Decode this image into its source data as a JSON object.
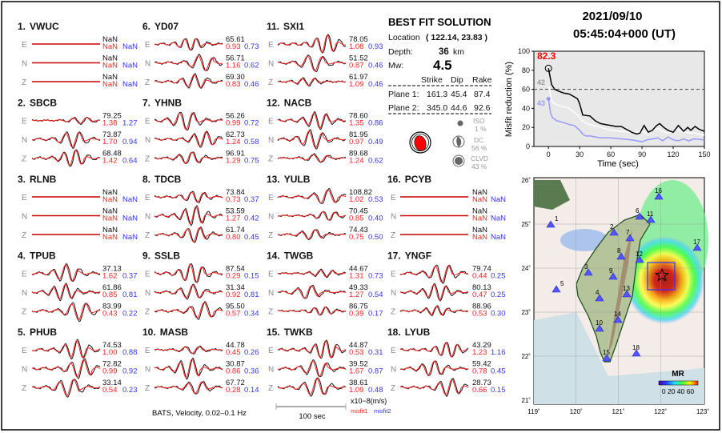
{
  "header": {
    "date": "2021/09/10",
    "time": "05:45:04+000  (UT)"
  },
  "solution": {
    "title": "BEST FIT SOLUTION",
    "location_label": "Location",
    "location_value": "( 122.14,  23.83 )",
    "depth_label": "Depth:",
    "depth_value": "36",
    "depth_unit": "km",
    "mw_label": "Mw:",
    "mw_value": "4.5",
    "columns": [
      "Strike",
      "Dip",
      "Rake"
    ],
    "planes": [
      {
        "label": "Plane 1:",
        "strike": "161.3",
        "dip": "45.4",
        "rake": "87.4"
      },
      {
        "label": "Plane 2:",
        "strike": "345.0",
        "dip": "44.6",
        "rake": "92.6"
      }
    ],
    "components": [
      {
        "label": "ISO",
        "value": "1  %"
      },
      {
        "label": "DC",
        "value": "56 %"
      },
      {
        "label": "CLVD",
        "value": "43 %"
      }
    ],
    "colors": {
      "beachball": "#ff0000",
      "observed": "#000000",
      "synthetic": "#ff0000"
    }
  },
  "stations": [
    {
      "num": "1.",
      "name": "VWUC",
      "comps": [
        {
          "c": "E",
          "vr": "NaN",
          "m1": "NaN",
          "m2": "NaN"
        },
        {
          "c": "N",
          "vr": "NaN",
          "m1": "NaN",
          "m2": "NaN"
        },
        {
          "c": "Z",
          "vr": "NaN",
          "m1": "NaN",
          "m2": "NaN"
        }
      ]
    },
    {
      "num": "2.",
      "name": "SBCB",
      "comps": [
        {
          "c": "E",
          "vr": "79.25",
          "m1": "1.38",
          "m2": "1.27"
        },
        {
          "c": "N",
          "vr": "73.87",
          "m1": "1.70",
          "m2": "0.94"
        },
        {
          "c": "Z",
          "vr": "68.48",
          "m1": "1.42",
          "m2": "0.64"
        }
      ]
    },
    {
      "num": "3.",
      "name": "RLNB",
      "comps": [
        {
          "c": "E",
          "vr": "NaN",
          "m1": "NaN",
          "m2": "NaN"
        },
        {
          "c": "N",
          "vr": "NaN",
          "m1": "NaN",
          "m2": "NaN"
        },
        {
          "c": "Z",
          "vr": "NaN",
          "m1": "NaN",
          "m2": "NaN"
        }
      ]
    },
    {
      "num": "4.",
      "name": "TPUB",
      "comps": [
        {
          "c": "E",
          "vr": "37.13",
          "m1": "1.62",
          "m2": "0.37"
        },
        {
          "c": "N",
          "vr": "61.86",
          "m1": "0.85",
          "m2": "0.81"
        },
        {
          "c": "Z",
          "vr": "83.99",
          "m1": "0.43",
          "m2": "0.22"
        }
      ]
    },
    {
      "num": "5.",
      "name": "PHUB",
      "comps": [
        {
          "c": "E",
          "vr": "74.53",
          "m1": "1.00",
          "m2": "0.88"
        },
        {
          "c": "N",
          "vr": "72.82",
          "m1": "0.99",
          "m2": "0.92"
        },
        {
          "c": "Z",
          "vr": "33.14",
          "m1": "0.54",
          "m2": "0.23"
        }
      ]
    },
    {
      "num": "6.",
      "name": "YD07",
      "comps": [
        {
          "c": "E",
          "vr": "65.61",
          "m1": "0.93",
          "m2": "0.73"
        },
        {
          "c": "N",
          "vr": "56.71",
          "m1": "1.16",
          "m2": "0.62"
        },
        {
          "c": "Z",
          "vr": "69.30",
          "m1": "0.83",
          "m2": "0.46"
        }
      ]
    },
    {
      "num": "7.",
      "name": "YHNB",
      "comps": [
        {
          "c": "E",
          "vr": "56.26",
          "m1": "0.99",
          "m2": "0.72"
        },
        {
          "c": "N",
          "vr": "62.73",
          "m1": "1.24",
          "m2": "0.58"
        },
        {
          "c": "Z",
          "vr": "96.91",
          "m1": "1.29",
          "m2": "0.75"
        }
      ]
    },
    {
      "num": "8.",
      "name": "TDCB",
      "comps": [
        {
          "c": "E",
          "vr": "73.84",
          "m1": "0.73",
          "m2": "0.37"
        },
        {
          "c": "N",
          "vr": "53.59",
          "m1": "1.27",
          "m2": "0.42"
        },
        {
          "c": "Z",
          "vr": "61.74",
          "m1": "0.80",
          "m2": "0.45"
        }
      ]
    },
    {
      "num": "9.",
      "name": "SSLB",
      "comps": [
        {
          "c": "E",
          "vr": "87.54",
          "m1": "0.29",
          "m2": "0.15"
        },
        {
          "c": "N",
          "vr": "31.34",
          "m1": "0.92",
          "m2": "0.81"
        },
        {
          "c": "Z",
          "vr": "95.50",
          "m1": "0.57",
          "m2": "0.34"
        }
      ]
    },
    {
      "num": "10.",
      "name": "MASB",
      "comps": [
        {
          "c": "E",
          "vr": "44.78",
          "m1": "0.45",
          "m2": "0.26"
        },
        {
          "c": "N",
          "vr": "30.87",
          "m1": "0.86",
          "m2": "0.36"
        },
        {
          "c": "Z",
          "vr": "67.72",
          "m1": "0.28",
          "m2": "0.14"
        }
      ]
    },
    {
      "num": "11.",
      "name": "SXI1",
      "comps": [
        {
          "c": "E",
          "vr": "78.05",
          "m1": "1.08",
          "m2": "0.93"
        },
        {
          "c": "N",
          "vr": "51.52",
          "m1": "0.87",
          "m2": "0.46"
        },
        {
          "c": "Z",
          "vr": "61.97",
          "m1": "1.09",
          "m2": "0.46"
        }
      ]
    },
    {
      "num": "12.",
      "name": "NACB",
      "comps": [
        {
          "c": "E",
          "vr": "78.60",
          "m1": "1.35",
          "m2": "0.86"
        },
        {
          "c": "N",
          "vr": "81.95",
          "m1": "0.97",
          "m2": "0.49"
        },
        {
          "c": "Z",
          "vr": "89.68",
          "m1": "1.24",
          "m2": "0.62"
        }
      ]
    },
    {
      "num": "13.",
      "name": "YULB",
      "comps": [
        {
          "c": "E",
          "vr": "108.82",
          "m1": "1.02",
          "m2": "0.53"
        },
        {
          "c": "N",
          "vr": "70.45",
          "m1": "0.85",
          "m2": "0.40"
        },
        {
          "c": "Z",
          "vr": "74.43",
          "m1": "0.75",
          "m2": "0.50"
        }
      ]
    },
    {
      "num": "14.",
      "name": "TWGB",
      "comps": [
        {
          "c": "E",
          "vr": "44.67",
          "m1": "1.31",
          "m2": "0.73"
        },
        {
          "c": "N",
          "vr": "49.33",
          "m1": "1.27",
          "m2": "0.54"
        },
        {
          "c": "Z",
          "vr": "86.75",
          "m1": "0.39",
          "m2": "0.17"
        }
      ]
    },
    {
      "num": "15.",
      "name": "TWKB",
      "comps": [
        {
          "c": "E",
          "vr": "44.87",
          "m1": "0.53",
          "m2": "0.31"
        },
        {
          "c": "N",
          "vr": "39.52",
          "m1": "1.67",
          "m2": "0.87"
        },
        {
          "c": "Z",
          "vr": "38.61",
          "m1": "1.09",
          "m2": "0.48"
        }
      ]
    },
    {
      "num": "16.",
      "name": "PCYB",
      "comps": [
        {
          "c": "E",
          "vr": "NaN",
          "m1": "NaN",
          "m2": "NaN"
        },
        {
          "c": "N",
          "vr": "NaN",
          "m1": "NaN",
          "m2": "NaN"
        },
        {
          "c": "Z",
          "vr": "NaN",
          "m1": "NaN",
          "m2": "NaN"
        }
      ]
    },
    {
      "num": "17.",
      "name": "YNGF",
      "comps": [
        {
          "c": "E",
          "vr": "79.74",
          "m1": "0.44",
          "m2": "0.25"
        },
        {
          "c": "N",
          "vr": "80.13",
          "m1": "0.47",
          "m2": "0.25"
        },
        {
          "c": "Z",
          "vr": "88.96",
          "m1": "0.53",
          "m2": "0.30"
        }
      ]
    },
    {
      "num": "18.",
      "name": "LYUB",
      "comps": [
        {
          "c": "E",
          "vr": "43.29",
          "m1": "1.23",
          "m2": "1.16"
        },
        {
          "c": "N",
          "vr": "59.42",
          "m1": "0.78",
          "m2": "0.45"
        },
        {
          "c": "Z",
          "vr": "28.73",
          "m1": "0.66",
          "m2": "0.15"
        }
      ]
    }
  ],
  "footer": {
    "caption": "BATS, Velocity, 0.02–0.1 Hz",
    "scale_label": "100 sec",
    "unit": "x10−8(m/s)",
    "misfit1": "misfit1",
    "misfit2": "misfit2"
  },
  "chart_data": {
    "type": "line",
    "xlabel": "Time (sec)",
    "ylabel": "Misfit reduction (%)",
    "xlim": [
      -14,
      150
    ],
    "ylim": [
      0,
      100
    ],
    "xticks": [
      "0",
      "30",
      "60",
      "90",
      "120",
      "150"
    ],
    "yticks": [
      "0",
      "20",
      "40",
      "60",
      "80",
      "100"
    ],
    "reference_line": 60,
    "background": "#e8e8e8",
    "annotations": [
      {
        "text": "82.3",
        "color": "#ff0000"
      },
      {
        "text": "42",
        "color": "#999999"
      },
      {
        "text": "43",
        "color": "#9999ff"
      }
    ],
    "series": [
      {
        "color": "#000000",
        "x": [
          0,
          3,
          6,
          10,
          15,
          20,
          25,
          28,
          30,
          33,
          40,
          45,
          50,
          55,
          60,
          65,
          70,
          75,
          80,
          85,
          88,
          92,
          96,
          100,
          104,
          107,
          111,
          115,
          120,
          125,
          130,
          134,
          137,
          141,
          145,
          150
        ],
        "y": [
          82,
          65,
          60,
          58,
          56,
          55,
          52,
          50,
          45,
          33,
          32,
          27,
          24,
          23,
          22,
          21,
          21,
          18,
          15,
          13,
          14,
          22,
          15,
          17,
          22,
          24,
          20,
          17,
          15,
          22,
          16,
          20,
          17,
          21,
          18,
          16
        ]
      },
      {
        "color": "#ffffff",
        "x": [
          0,
          3,
          6,
          10,
          20,
          28,
          32,
          35,
          40,
          50,
          60,
          70,
          80,
          90,
          95,
          100,
          105,
          110,
          115,
          120,
          125,
          130,
          140,
          150
        ],
        "y": [
          65,
          48,
          45,
          43,
          40,
          33,
          28,
          25,
          23,
          20,
          17,
          16,
          15,
          16,
          14,
          17,
          19,
          16,
          14,
          16,
          18,
          15,
          14,
          12
        ]
      },
      {
        "color": "#9999ff",
        "x": [
          0,
          2,
          4,
          8,
          15,
          20,
          25,
          30,
          33,
          36,
          40,
          50,
          60,
          70,
          80,
          90,
          95,
          100,
          105,
          110,
          115,
          120,
          125,
          130,
          135,
          140,
          150
        ],
        "y": [
          50,
          35,
          30,
          27,
          25,
          23,
          22,
          17,
          13,
          11,
          11,
          9,
          9,
          8,
          7,
          5,
          7,
          8,
          9,
          6,
          10,
          7,
          6,
          8,
          6,
          8,
          7
        ]
      }
    ]
  },
  "map": {
    "lon_ticks": [
      "119˚",
      "120˚",
      "121˚",
      "122˚",
      "123˚"
    ],
    "lat_ticks": [
      "21˚",
      "22˚",
      "23˚",
      "24˚",
      "25˚",
      "26˚"
    ],
    "colorbar_label": "MR",
    "colorbar_ticks": "0 20 40 60",
    "station_labels": [
      "1",
      "2",
      "3",
      "4",
      "5",
      "6",
      "7",
      "8",
      "9",
      "10",
      "11",
      "12",
      "13",
      "14",
      "15",
      "16",
      "17",
      "18"
    ],
    "colors": {
      "station": "#5555ff",
      "box": "#3333ff",
      "epicenter_max": "#a00000"
    }
  }
}
